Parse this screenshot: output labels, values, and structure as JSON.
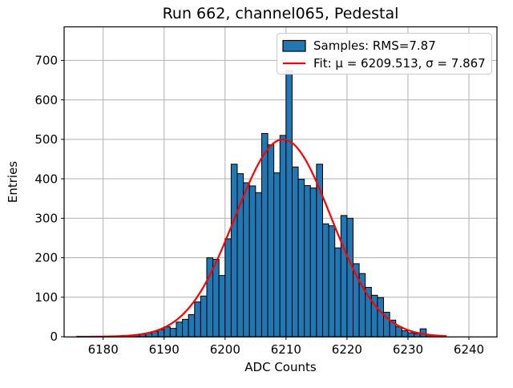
{
  "chart_data": {
    "type": "bar",
    "subtype": "histogram-with-gaussian-fit",
    "title": "Run 662, channel065, Pedestal",
    "xlabel": "ADC Counts",
    "ylabel": "Entries",
    "x_ticks": [
      6180,
      6190,
      6200,
      6210,
      6220,
      6230,
      6240
    ],
    "y_ticks": [
      0,
      100,
      200,
      300,
      400,
      500,
      600,
      700
    ],
    "xlim": [
      6173.6,
      6244.6
    ],
    "ylim": [
      0,
      785
    ],
    "grid": true,
    "bin_start": 6183,
    "bin_width": 1,
    "counts": [
      3,
      3,
      4,
      6,
      9,
      13,
      18,
      25,
      21,
      37,
      44,
      56,
      88,
      103,
      200,
      196,
      155,
      248,
      437,
      413,
      390,
      382,
      365,
      515,
      486,
      415,
      510,
      675,
      430,
      399,
      383,
      377,
      437,
      286,
      281,
      225,
      307,
      300,
      185,
      160,
      125,
      105,
      99,
      62,
      42,
      25,
      15,
      10,
      8,
      20,
      5,
      3
    ],
    "fit": {
      "type": "gaussian",
      "amplitude": 500,
      "mu": 6209.513,
      "sigma": 7.867,
      "x_range": [
        6175.6,
        6236.4
      ]
    },
    "legend": {
      "position": "top-right",
      "entries": [
        {
          "label": "Samples: RMS=7.87",
          "swatch": "bar"
        },
        {
          "label": "Fit: μ = 6209.513, σ = 7.867",
          "swatch": "line"
        }
      ]
    },
    "colors": {
      "bar_fill": "#1f77b4",
      "bar_edge": "#000000",
      "fit_line": "#ff0000",
      "grid": "#b0b0b0",
      "spine": "#000000",
      "legend_edge": "#cccccc",
      "legend_bg": "#ffffff"
    }
  }
}
